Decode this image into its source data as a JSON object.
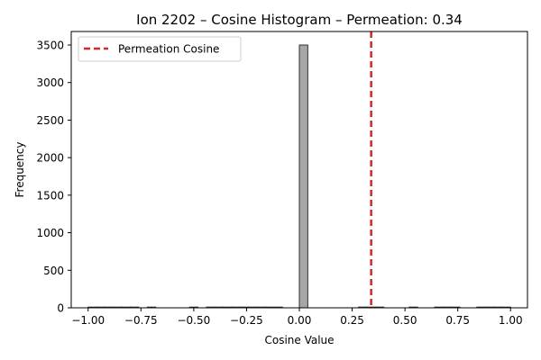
{
  "chart_data": {
    "type": "bar",
    "title": "Ion 2202 – Cosine Histogram – Permeation: 0.34",
    "xlabel": "Cosine Value",
    "ylabel": "Frequency",
    "xlim": [
      -1.08,
      1.08
    ],
    "ylim": [
      0,
      3680
    ],
    "xticks": [
      -1.0,
      -0.75,
      -0.5,
      -0.25,
      0.0,
      0.25,
      0.5,
      0.75,
      1.0
    ],
    "xtick_labels": [
      "−1.00",
      "−0.75",
      "−0.50",
      "−0.25",
      "0.00",
      "0.25",
      "0.50",
      "0.75",
      "1.00"
    ],
    "yticks": [
      0,
      500,
      1000,
      1500,
      2000,
      2500,
      3000,
      3500
    ],
    "ytick_labels": [
      "0",
      "500",
      "1000",
      "1500",
      "2000",
      "2500",
      "3000",
      "3500"
    ],
    "bins": {
      "start": -1.0,
      "width": 0.04,
      "counts": [
        1,
        1,
        1,
        1,
        1,
        1,
        0,
        1,
        0,
        0,
        0,
        0,
        1,
        0,
        1,
        1,
        1,
        1,
        1,
        1,
        1,
        1,
        1,
        0,
        0,
        3500,
        0,
        0,
        0,
        0,
        0,
        0,
        1,
        1,
        1,
        0,
        0,
        0,
        1,
        0,
        0,
        1,
        1,
        1,
        0,
        0,
        1,
        1,
        1,
        1
      ]
    },
    "reference_line": {
      "name": "Permeation Cosine",
      "x": 0.34,
      "color": "#d62728"
    },
    "legend": {
      "entries": [
        "Permeation Cosine"
      ],
      "position": "upper-left"
    },
    "colors": {
      "bar_fill": "#a6a6a6",
      "bar_edge": "#333333"
    },
    "grid": false
  }
}
